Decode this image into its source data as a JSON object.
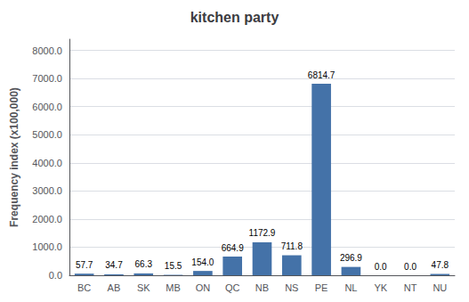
{
  "chart_data": {
    "type": "bar",
    "title": "kitchen party",
    "categories": [
      "BC",
      "AB",
      "SK",
      "MB",
      "ON",
      "QC",
      "NB",
      "NS",
      "PE",
      "NL",
      "YK",
      "NT",
      "NU"
    ],
    "values": [
      57.7,
      34.7,
      66.3,
      15.5,
      154.0,
      664.9,
      1172.9,
      711.8,
      6814.7,
      296.9,
      0.0,
      0.0,
      47.8
    ],
    "value_labels": [
      "57.7",
      "34.7",
      "66.3",
      "15.5",
      "154.0",
      "664.9",
      "1172.9",
      "711.8",
      "6814.7",
      "296.9",
      "0.0",
      "0.0",
      "47.8"
    ],
    "data_labels": true,
    "color": "#4472a8",
    "ylabel": "Frequency index (x100,000)",
    "ylim": [
      0,
      8400
    ],
    "yticks": [
      {
        "value": 0,
        "label": "0.0"
      },
      {
        "value": 1000,
        "label": "1000.0"
      },
      {
        "value": 2000,
        "label": "2000.0"
      },
      {
        "value": 3000,
        "label": "3000.0"
      },
      {
        "value": 4000,
        "label": "4000.0"
      },
      {
        "value": 5000,
        "label": "5000.0"
      },
      {
        "value": 6000,
        "label": "6000.0"
      },
      {
        "value": 7000,
        "label": "7000.0"
      },
      {
        "value": 8000,
        "label": "8000.0"
      }
    ],
    "grid": true
  }
}
